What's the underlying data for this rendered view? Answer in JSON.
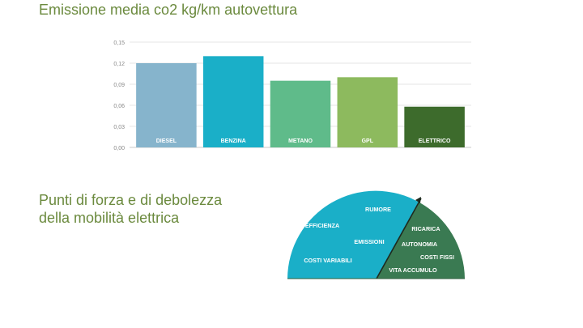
{
  "chart_title": "Emissione media co2 kg/km autovettura",
  "gauge_title_line1": "Punti di forza e di debolezza",
  "gauge_title_line2": "della mobilità elettrica",
  "chart_data": [
    {
      "type": "bar",
      "categories": [
        "DIESEL",
        "BENZINA",
        "METANO",
        "GPL",
        "ELETTRICO"
      ],
      "values": [
        0.12,
        0.13,
        0.095,
        0.1,
        0.058
      ],
      "colors": [
        "#86b4cc",
        "#1aafc8",
        "#5fbb8a",
        "#8dba5e",
        "#3d6b2c"
      ],
      "ylim": [
        0,
        0.15
      ],
      "yticks": [
        "0,00",
        "0,03",
        "0,06",
        "0,09",
        "0,12",
        "0,15"
      ],
      "ytick_values": [
        0,
        0.03,
        0.06,
        0.09,
        0.12,
        0.15
      ],
      "title": "",
      "xlabel": "",
      "ylabel": "",
      "grid": true
    }
  ],
  "gauge": {
    "strengths": [
      "RUMORE",
      "EFFICIENZA",
      "EMISSIONI",
      "COSTI VARIABILI"
    ],
    "weaknesses": [
      "RICARICA",
      "AUTONOMIA",
      "COSTI FISSI",
      "VITA ACCUMULO"
    ],
    "strength_color": "#1aafc8",
    "weakness_color": "#3a7a52"
  }
}
